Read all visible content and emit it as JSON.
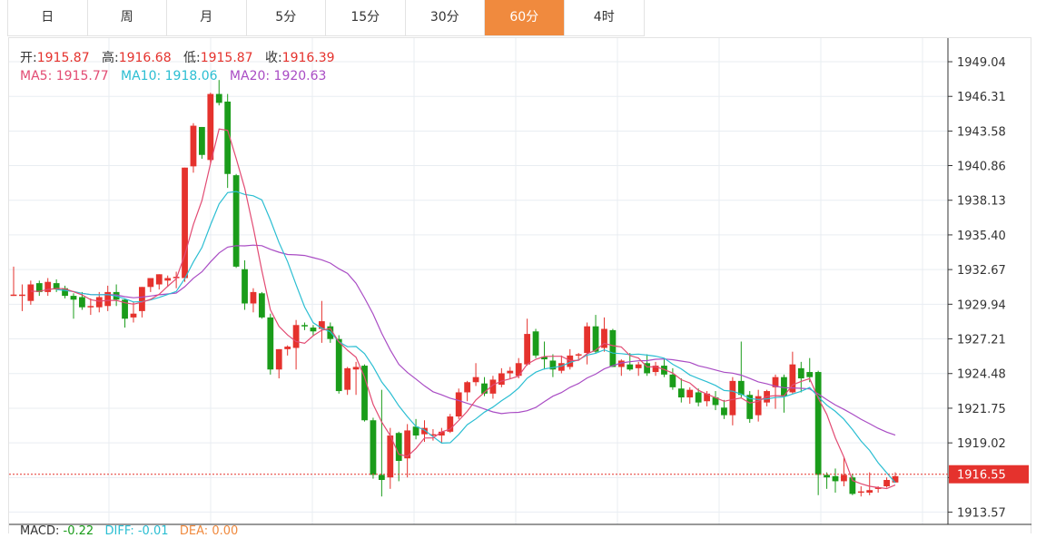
{
  "tabs": [
    {
      "label": "日",
      "active": false
    },
    {
      "label": "周",
      "active": false
    },
    {
      "label": "月",
      "active": false
    },
    {
      "label": "5分",
      "active": false
    },
    {
      "label": "15分",
      "active": false
    },
    {
      "label": "30分",
      "active": false
    },
    {
      "label": "60分",
      "active": true
    },
    {
      "label": "4时",
      "active": false
    }
  ],
  "ohlc_info": {
    "open_label": "开:",
    "open": "1915.87",
    "high_label": "高:",
    "high": "1916.68",
    "low_label": "低:",
    "low": "1915.87",
    "close_label": "收:",
    "close": "1916.39"
  },
  "ma_info": {
    "ma5_label": "MA5:",
    "ma5": "1915.77",
    "ma10_label": "MA10:",
    "ma10": "1918.06",
    "ma20_label": "MA20:",
    "ma20": "1920.63"
  },
  "macd_info": {
    "macd_label": "MACD:",
    "macd": "-0.22",
    "diff_label": "DIFF:",
    "diff": "-0.01",
    "dea_label": "DEA:",
    "dea": "0.00"
  },
  "colors": {
    "up": "#e5322d",
    "down": "#1a9c1a",
    "ma5": "#e24b73",
    "ma10": "#2bbed2",
    "ma20": "#a94cc4",
    "grid": "#e9edf2",
    "active_tab": "#f08a3e",
    "price_box": "#e5322d"
  },
  "chart_data": {
    "type": "candlestick",
    "y_ticks": [
      "1949.04",
      "1946.31",
      "1943.58",
      "1940.86",
      "1938.13",
      "1935.40",
      "1932.67",
      "1929.94",
      "1927.21",
      "1924.48",
      "1921.75",
      "1919.02",
      "1916.29",
      "1913.57"
    ],
    "ylim": [
      1912.6,
      1950.9
    ],
    "current_price": "1916.55",
    "candles": [
      [
        1930.6,
        1932.9,
        1930.6,
        1930.7
      ],
      [
        1930.6,
        1931.5,
        1929.4,
        1930.7
      ],
      [
        1930.2,
        1931.8,
        1929.9,
        1931.5
      ],
      [
        1931.6,
        1931.8,
        1930.6,
        1930.9
      ],
      [
        1930.9,
        1932.0,
        1930.6,
        1931.7
      ],
      [
        1931.6,
        1931.9,
        1930.9,
        1931.1
      ],
      [
        1931.2,
        1931.4,
        1930.4,
        1930.6
      ],
      [
        1930.6,
        1930.8,
        1928.8,
        1930.3
      ],
      [
        1930.5,
        1930.9,
        1929.5,
        1929.7
      ],
      [
        1929.8,
        1930.4,
        1929.1,
        1929.8
      ],
      [
        1929.7,
        1930.9,
        1929.3,
        1930.5
      ],
      [
        1929.8,
        1931.4,
        1929.4,
        1930.9
      ],
      [
        1930.9,
        1931.5,
        1929.8,
        1930.3
      ],
      [
        1930.3,
        1930.4,
        1928.1,
        1928.8
      ],
      [
        1928.9,
        1930.1,
        1928.5,
        1929.2
      ],
      [
        1929.4,
        1931.3,
        1928.9,
        1931.3
      ],
      [
        1931.3,
        1932.0,
        1930.9,
        1932.0
      ],
      [
        1931.5,
        1932.3,
        1931.1,
        1932.3
      ],
      [
        1931.8,
        1932.2,
        1931.3,
        1932.0
      ],
      [
        1932.0,
        1932.5,
        1931.2,
        1932.1
      ],
      [
        1932.0,
        1940.7,
        1931.7,
        1940.7
      ],
      [
        1940.8,
        1944.2,
        1940.3,
        1944.0
      ],
      [
        1943.9,
        1943.9,
        1941.4,
        1941.7
      ],
      [
        1941.3,
        1946.6,
        1941.0,
        1946.5
      ],
      [
        1946.5,
        1947.6,
        1945.6,
        1945.8
      ],
      [
        1945.9,
        1946.5,
        1939.1,
        1940.2
      ],
      [
        1940.1,
        1940.2,
        1932.8,
        1932.9
      ],
      [
        1932.7,
        1933.4,
        1929.5,
        1930.0
      ],
      [
        1930.0,
        1931.2,
        1929.3,
        1930.9
      ],
      [
        1930.8,
        1930.9,
        1928.8,
        1928.9
      ],
      [
        1928.9,
        1929.2,
        1924.4,
        1924.8
      ],
      [
        1924.8,
        1926.4,
        1924.1,
        1926.4
      ],
      [
        1926.4,
        1926.7,
        1925.9,
        1926.6
      ],
      [
        1926.5,
        1928.7,
        1924.8,
        1928.3
      ],
      [
        1928.3,
        1928.5,
        1927.9,
        1928.2
      ],
      [
        1928.1,
        1928.3,
        1927.5,
        1927.8
      ],
      [
        1928.0,
        1930.2,
        1926.9,
        1928.6
      ],
      [
        1928.2,
        1928.5,
        1926.9,
        1927.2
      ],
      [
        1927.2,
        1927.5,
        1922.9,
        1923.1
      ],
      [
        1923.2,
        1925.0,
        1922.8,
        1924.9
      ],
      [
        1924.8,
        1925.4,
        1922.8,
        1925.0
      ],
      [
        1925.1,
        1925.2,
        1920.7,
        1920.8
      ],
      [
        1920.8,
        1921.0,
        1916.2,
        1916.5
      ],
      [
        1916.5,
        1923.2,
        1914.8,
        1916.1
      ],
      [
        1916.3,
        1920.2,
        1915.4,
        1919.6
      ],
      [
        1919.8,
        1919.9,
        1916.0,
        1917.6
      ],
      [
        1917.8,
        1920.5,
        1916.3,
        1920.0
      ],
      [
        1920.3,
        1920.9,
        1919.3,
        1919.6
      ],
      [
        1919.7,
        1920.8,
        1919.1,
        1920.2
      ],
      [
        1919.6,
        1920.1,
        1919.2,
        1919.7
      ],
      [
        1919.6,
        1920.2,
        1919.0,
        1919.9
      ],
      [
        1919.9,
        1921.3,
        1919.8,
        1921.1
      ],
      [
        1921.1,
        1923.3,
        1920.9,
        1923.0
      ],
      [
        1923.0,
        1923.9,
        1922.3,
        1923.8
      ],
      [
        1923.8,
        1925.3,
        1923.5,
        1924.2
      ],
      [
        1923.7,
        1924.2,
        1922.7,
        1922.9
      ],
      [
        1922.9,
        1924.3,
        1922.5,
        1924.0
      ],
      [
        1923.6,
        1924.9,
        1923.4,
        1924.5
      ],
      [
        1924.5,
        1925.0,
        1924.1,
        1924.7
      ],
      [
        1924.3,
        1925.7,
        1924.1,
        1925.3
      ],
      [
        1925.2,
        1928.8,
        1925.1,
        1927.6
      ],
      [
        1927.8,
        1928.0,
        1925.7,
        1925.9
      ],
      [
        1925.8,
        1927.0,
        1924.8,
        1925.6
      ],
      [
        1925.5,
        1926.0,
        1924.2,
        1924.8
      ],
      [
        1924.7,
        1925.9,
        1924.5,
        1925.3
      ],
      [
        1925.0,
        1926.4,
        1924.8,
        1925.9
      ],
      [
        1925.9,
        1926.1,
        1925.5,
        1926.0
      ],
      [
        1926.1,
        1928.5,
        1925.2,
        1928.2
      ],
      [
        1928.2,
        1929.1,
        1926.1,
        1926.2
      ],
      [
        1926.5,
        1928.9,
        1926.2,
        1928.0
      ],
      [
        1927.9,
        1928.0,
        1925.0,
        1925.0
      ],
      [
        1925.0,
        1925.6,
        1924.3,
        1925.5
      ],
      [
        1925.2,
        1926.1,
        1924.7,
        1924.8
      ],
      [
        1924.9,
        1925.4,
        1924.3,
        1925.2
      ],
      [
        1925.3,
        1926.0,
        1924.3,
        1924.5
      ],
      [
        1924.6,
        1925.4,
        1924.3,
        1925.1
      ],
      [
        1925.1,
        1925.7,
        1924.2,
        1924.4
      ],
      [
        1924.4,
        1924.9,
        1923.2,
        1923.4
      ],
      [
        1923.3,
        1924.1,
        1922.2,
        1922.6
      ],
      [
        1922.6,
        1923.4,
        1922.1,
        1923.2
      ],
      [
        1923.0,
        1923.3,
        1921.9,
        1922.2
      ],
      [
        1922.3,
        1923.1,
        1921.9,
        1922.9
      ],
      [
        1922.6,
        1923.1,
        1921.6,
        1922.0
      ],
      [
        1921.8,
        1922.4,
        1920.9,
        1921.2
      ],
      [
        1921.2,
        1924.2,
        1920.4,
        1923.9
      ],
      [
        1923.9,
        1927.0,
        1922.6,
        1922.8
      ],
      [
        1922.8,
        1923.1,
        1920.6,
        1920.9
      ],
      [
        1921.2,
        1923.2,
        1920.7,
        1922.7
      ],
      [
        1922.2,
        1923.2,
        1921.9,
        1923.1
      ],
      [
        1923.4,
        1924.4,
        1921.7,
        1924.2
      ],
      [
        1924.2,
        1924.4,
        1921.4,
        1922.7
      ],
      [
        1923.0,
        1926.2,
        1922.9,
        1925.2
      ],
      [
        1924.9,
        1925.4,
        1923.0,
        1924.1
      ],
      [
        1924.6,
        1925.7,
        1923.8,
        1924.2
      ],
      [
        1924.6,
        1924.7,
        1914.9,
        1916.5
      ],
      [
        1916.5,
        1916.7,
        1915.4,
        1916.3
      ],
      [
        1916.4,
        1917.0,
        1915.1,
        1916.0
      ],
      [
        1916.0,
        1917.9,
        1915.6,
        1916.5
      ],
      [
        1916.3,
        1916.6,
        1914.9,
        1915.0
      ],
      [
        1915.1,
        1915.6,
        1914.8,
        1915.2
      ],
      [
        1915.1,
        1916.7,
        1914.9,
        1915.3
      ],
      [
        1915.4,
        1915.6,
        1915.1,
        1915.5
      ],
      [
        1915.6,
        1916.3,
        1915.5,
        1916.1
      ],
      [
        1915.9,
        1916.7,
        1915.9,
        1916.4
      ]
    ]
  }
}
